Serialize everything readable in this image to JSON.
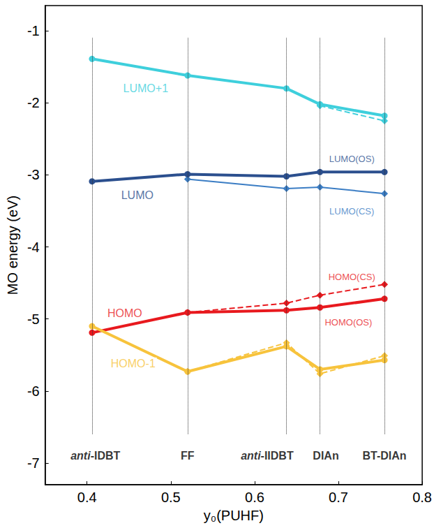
{
  "chart_data": {
    "type": "line",
    "x_label": "y₀(PUHF)",
    "y_label": "MO energy (eV)",
    "x": [
      0.406,
      0.52,
      0.638,
      0.678,
      0.755
    ],
    "xlim": [
      0.35,
      0.8
    ],
    "xticks": [
      0.4,
      0.5,
      0.6,
      0.7,
      0.8
    ],
    "ylim": [
      -7.3,
      -0.65
    ],
    "yticks": [
      -7,
      -6,
      -5,
      -4,
      -3,
      -2,
      -1
    ],
    "grid": false,
    "series": [
      {
        "name": "LUMO+1",
        "color": "#3ecfdc",
        "marker": "circle",
        "line_style": "solid",
        "values": [
          -1.39,
          -1.62,
          -1.8,
          -2.02,
          -2.18
        ]
      },
      {
        "color": "#3ecfdc",
        "marker": "diamond",
        "line_style": "dashed",
        "values": [
          null,
          null,
          null,
          -2.04,
          -2.25
        ]
      },
      {
        "name": "LUMO(OS)",
        "color": "#2b4f8e",
        "marker": "circle",
        "line_style": "solid",
        "values": [
          -3.09,
          -2.99,
          -3.02,
          -2.96,
          -2.96
        ]
      },
      {
        "name": "LUMO(CS)",
        "color": "#3b7dc4",
        "marker": "diamond",
        "line_style": "thin",
        "values": [
          null,
          -3.06,
          -3.19,
          -3.17,
          -3.26
        ]
      },
      {
        "name": "HOMO(OS)",
        "color": "#e8191e",
        "marker": "circle",
        "line_style": "solid",
        "values": [
          -5.19,
          -4.91,
          -4.88,
          -4.84,
          -4.72
        ]
      },
      {
        "name": "HOMO(CS)",
        "color": "#e8191e",
        "marker": "diamond",
        "line_style": "dashed",
        "values": [
          null,
          -4.91,
          -4.78,
          -4.67,
          -4.52
        ]
      },
      {
        "name": "HOMO-1",
        "color": "#f7c33c",
        "marker": "circle",
        "line_style": "solid",
        "values": [
          -5.1,
          -5.73,
          -5.38,
          -5.7,
          -5.57
        ]
      },
      {
        "color": "#f7c33c",
        "marker": "diamond",
        "line_style": "dashed",
        "values": [
          null,
          -5.73,
          -5.33,
          -5.76,
          -5.51
        ]
      }
    ],
    "annotations": [
      {
        "text": "LUMO+1",
        "x": 0.47,
        "y": -1.8,
        "color": "#3ecfdc"
      },
      {
        "text": "LUMO",
        "x": 0.46,
        "y": -3.28,
        "color": "#2b4f8e"
      },
      {
        "text": "LUMO(OS)",
        "x": 0.716,
        "y": -2.78,
        "color": "#2b4f8e"
      },
      {
        "text": "LUMO(CS)",
        "x": 0.716,
        "y": -3.5,
        "color": "#3b7dc4"
      },
      {
        "text": "HOMO(CS)",
        "x": 0.716,
        "y": -4.42,
        "color": "#e8191e"
      },
      {
        "text": "HOMO(OS)",
        "x": 0.712,
        "y": -5.05,
        "color": "#e8191e"
      },
      {
        "text": "HOMO",
        "x": 0.445,
        "y": -4.92,
        "color": "#e8191e"
      },
      {
        "text": "HOMO-1",
        "x": 0.455,
        "y": -5.62,
        "color": "#f7c33c"
      }
    ],
    "compound_labels": [
      {
        "text": "anti-IDBT",
        "x": 0.41,
        "y": -6.9
      },
      {
        "text": "FF",
        "x": 0.52,
        "y": -6.9
      },
      {
        "text": "anti-IIDBT",
        "x": 0.615,
        "y": -6.9
      },
      {
        "text": "DIAn",
        "x": 0.685,
        "y": -6.9
      },
      {
        "text": "BT-DIAn",
        "x": 0.755,
        "y": -6.9
      }
    ]
  }
}
